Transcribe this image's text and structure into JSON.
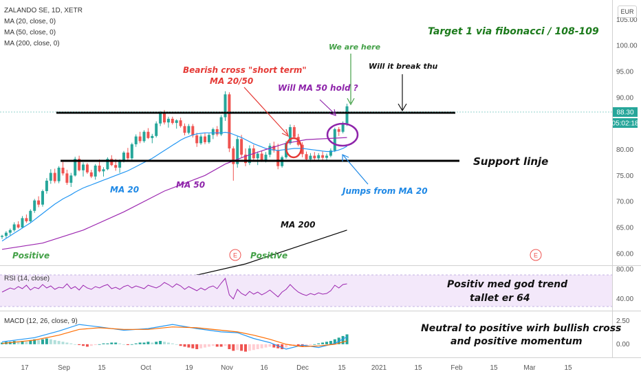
{
  "header": {
    "symbol": "ZALANDO SE, 1D, XETR",
    "indicators": [
      "MA (20, close, 0)",
      "MA (50, close, 0)",
      "MA (200, close, 0)"
    ]
  },
  "currency_button": "EUR",
  "price_axis": {
    "ticks": [
      "105.00",
      "100.00",
      "95.00",
      "90.00",
      "80.00",
      "75.00",
      "70.00",
      "65.00",
      "60.00"
    ],
    "price_badge": "88.30",
    "countdown_badge": "05:02:18"
  },
  "rsi": {
    "label": "RSI (14, close)",
    "ticks": [
      "80.00",
      "40.00"
    ]
  },
  "macd": {
    "label": "MACD (12, 26, close, 9)",
    "ticks": [
      "2.50",
      "0.00"
    ]
  },
  "time_axis": [
    "17",
    "Sep",
    "15",
    "Oct",
    "19",
    "Nov",
    "16",
    "Dec",
    "15",
    "2021",
    "15",
    "Feb",
    "15",
    "Mar",
    "15"
  ],
  "annotations": {
    "target": "Target 1 via fibonacci / 108-109",
    "we_are_here": "We are here",
    "will_break": "Will it break thu",
    "bearish_1": "Bearish cross \"short term\"",
    "bearish_2": "MA 20/50",
    "will_hold": "Will MA 50 hold ?",
    "support": "Support linje",
    "jumps": "Jumps from MA 20",
    "ma20": "MA 20",
    "ma50": "MA 50",
    "ma200": "MA 200",
    "positive_left": "Positive",
    "positive_mid": "Positive",
    "earnings_marker": "E",
    "rsi_note_1": "Positiv med god trend",
    "rsi_note_2": "tallet er 64",
    "macd_note_1": "Neutral to positive wirh bullish cross",
    "macd_note_2": "and positive momentum"
  },
  "colors": {
    "up": "#26a69a",
    "down": "#ef5350",
    "ma20": "#2196f3",
    "ma50": "#9c27b0",
    "ma200": "#000000",
    "annotation_green": "#1b7a1b",
    "annotation_red": "#e53935",
    "annotation_purple": "#8e24aa",
    "annotation_blue": "#1e88e5",
    "price_badge": "#26a69a",
    "rsi_band": "#ead8f5"
  },
  "chart_data": {
    "type": "candlestick",
    "price_ylim": [
      58,
      109
    ],
    "support_level": 78,
    "resistance_level": 88,
    "last_price": 88.3,
    "candles": [
      [
        63.2,
        63.6,
        62.8,
        63.4
      ],
      [
        63.4,
        64.3,
        63.0,
        64.0
      ],
      [
        64.0,
        64.8,
        63.5,
        64.5
      ],
      [
        64.5,
        66.0,
        64.2,
        65.6
      ],
      [
        65.6,
        66.2,
        64.8,
        65.0
      ],
      [
        65.0,
        67.2,
        64.8,
        66.8
      ],
      [
        66.8,
        67.5,
        65.9,
        66.2
      ],
      [
        66.2,
        68.5,
        66.0,
        68.2
      ],
      [
        68.2,
        70.5,
        67.8,
        70.2
      ],
      [
        70.2,
        71.0,
        68.9,
        69.4
      ],
      [
        69.4,
        72.3,
        69.0,
        72.0
      ],
      [
        72.0,
        74.5,
        71.5,
        74.0
      ],
      [
        74.0,
        76.2,
        73.4,
        75.5
      ],
      [
        75.5,
        76.3,
        73.5,
        73.9
      ],
      [
        73.9,
        76.8,
        73.5,
        76.5
      ],
      [
        76.5,
        77.6,
        75.0,
        75.4
      ],
      [
        75.4,
        76.1,
        73.2,
        73.6
      ],
      [
        73.6,
        75.5,
        72.8,
        75.0
      ],
      [
        75.0,
        78.6,
        74.8,
        78.2
      ],
      [
        78.2,
        78.8,
        75.8,
        76.0
      ],
      [
        76.0,
        77.5,
        74.8,
        77.1
      ],
      [
        77.1,
        77.4,
        75.3,
        75.6
      ],
      [
        75.6,
        76.1,
        74.5,
        74.8
      ],
      [
        74.8,
        77.2,
        74.2,
        76.9
      ],
      [
        76.9,
        78.1,
        75.6,
        75.8
      ],
      [
        75.8,
        76.6,
        74.8,
        76.2
      ],
      [
        76.2,
        78.5,
        76.0,
        78.2
      ],
      [
        78.2,
        78.9,
        76.8,
        77.0
      ],
      [
        77.0,
        78.2,
        75.9,
        76.5
      ],
      [
        76.5,
        78.1,
        75.5,
        77.8
      ],
      [
        77.8,
        79.7,
        77.5,
        79.4
      ],
      [
        79.4,
        80.3,
        78.0,
        78.3
      ],
      [
        78.3,
        81.3,
        78.0,
        81.0
      ],
      [
        81.0,
        82.9,
        80.5,
        82.5
      ],
      [
        82.5,
        83.4,
        81.2,
        81.6
      ],
      [
        81.6,
        83.7,
        81.3,
        83.4
      ],
      [
        83.4,
        84.1,
        82.0,
        82.2
      ],
      [
        82.2,
        83.0,
        81.2,
        82.6
      ],
      [
        82.6,
        85.4,
        82.3,
        85.0
      ],
      [
        85.0,
        87.4,
        84.5,
        86.9
      ],
      [
        86.9,
        87.6,
        84.8,
        85.2
      ],
      [
        85.2,
        86.3,
        84.2,
        85.9
      ],
      [
        85.9,
        86.3,
        84.8,
        85.1
      ],
      [
        85.1,
        85.8,
        84.0,
        85.6
      ],
      [
        85.6,
        86.1,
        84.2,
        84.5
      ],
      [
        84.5,
        85.0,
        82.7,
        83.2
      ],
      [
        83.2,
        84.9,
        82.9,
        84.5
      ],
      [
        84.5,
        84.9,
        82.3,
        82.7
      ],
      [
        82.7,
        83.2,
        80.5,
        81.2
      ],
      [
        81.2,
        82.9,
        80.9,
        82.5
      ],
      [
        82.5,
        83.2,
        81.0,
        81.4
      ],
      [
        81.4,
        83.1,
        81.1,
        82.8
      ],
      [
        82.8,
        84.2,
        82.0,
        83.9
      ],
      [
        83.9,
        84.5,
        82.5,
        82.9
      ],
      [
        82.9,
        86.6,
        82.6,
        86.2
      ],
      [
        86.2,
        91.2,
        85.5,
        90.6
      ],
      [
        90.6,
        91.0,
        79.5,
        80.2
      ],
      [
        80.2,
        80.6,
        74.0,
        77.2
      ],
      [
        77.2,
        82.5,
        76.5,
        82.0
      ],
      [
        82.0,
        82.8,
        78.5,
        79.0
      ],
      [
        79.0,
        80.2,
        76.8,
        77.4
      ],
      [
        77.4,
        80.8,
        77.0,
        80.2
      ],
      [
        80.2,
        80.9,
        77.8,
        78.3
      ],
      [
        78.3,
        79.6,
        77.0,
        79.2
      ],
      [
        79.2,
        79.7,
        77.6,
        77.9
      ],
      [
        77.9,
        79.5,
        77.5,
        79.0
      ],
      [
        79.0,
        81.2,
        78.5,
        80.7
      ],
      [
        80.7,
        81.5,
        79.4,
        79.8
      ],
      [
        79.8,
        81.1,
        76.2,
        76.8
      ],
      [
        76.8,
        78.8,
        76.5,
        78.5
      ],
      [
        78.5,
        81.6,
        78.2,
        81.2
      ],
      [
        81.2,
        84.8,
        80.9,
        84.3
      ],
      [
        84.3,
        84.7,
        82.0,
        82.4
      ],
      [
        82.4,
        83.0,
        80.6,
        80.9
      ],
      [
        80.9,
        81.4,
        78.5,
        79.1
      ],
      [
        79.1,
        79.6,
        77.7,
        78.1
      ],
      [
        78.1,
        79.3,
        77.6,
        78.8
      ],
      [
        78.8,
        79.5,
        77.9,
        78.3
      ],
      [
        78.3,
        79.3,
        77.8,
        78.9
      ],
      [
        78.9,
        79.6,
        78.0,
        78.4
      ],
      [
        78.4,
        79.2,
        77.9,
        78.8
      ],
      [
        78.8,
        80.2,
        78.5,
        79.8
      ],
      [
        79.8,
        84.2,
        79.5,
        83.9
      ],
      [
        83.9,
        84.3,
        82.6,
        83.4
      ],
      [
        83.4,
        85.4,
        83.1,
        85.0
      ],
      [
        85.0,
        88.8,
        84.5,
        88.3
      ]
    ],
    "ma20": [
      62.4,
      62.9,
      63.4,
      63.9,
      64.4,
      64.9,
      65.4,
      65.9,
      66.5,
      67.1,
      67.7,
      68.3,
      68.9,
      69.5,
      70.0,
      70.5,
      70.9,
      71.3,
      71.8,
      72.2,
      72.6,
      72.9,
      73.2,
      73.5,
      73.8,
      74.1,
      74.4,
      74.7,
      75.0,
      75.3,
      75.6,
      75.9,
      76.3,
      76.7,
      77.1,
      77.5,
      77.9,
      78.3,
      78.8,
      79.3,
      79.8,
      80.3,
      80.8,
      81.3,
      81.8,
      82.2,
      82.5,
      82.8,
      83.0,
      83.1,
      83.2,
      83.2,
      83.2,
      83.2,
      83.2,
      83.3,
      83.2,
      82.9,
      82.6,
      82.3,
      81.9,
      81.5,
      81.1,
      80.8,
      80.5,
      80.2,
      80.0,
      79.9,
      79.8,
      79.9,
      80.0,
      80.1,
      80.2,
      80.2,
      80.2,
      80.1,
      80.0,
      79.9,
      79.8,
      79.7,
      79.6,
      79.6,
      79.7,
      79.9,
      80.2,
      80.6
    ],
    "ma50": [
      null,
      null,
      null,
      null,
      null,
      null,
      null,
      null,
      null,
      null,
      null,
      null,
      null,
      null,
      null,
      null,
      null,
      null,
      null,
      null,
      null,
      null,
      null,
      null,
      null,
      null,
      null,
      null,
      null,
      null,
      null,
      null,
      null,
      null,
      null,
      null,
      null,
      null,
      null,
      null,
      null,
      null,
      null,
      null,
      null,
      null,
      null,
      null,
      null,
      null,
      null,
      null,
      null,
      null,
      null,
      null,
      null,
      null,
      null,
      null,
      null,
      null,
      null,
      null,
      null,
      null,
      null,
      null,
      null,
      null,
      null,
      null,
      null,
      null,
      null,
      null,
      null,
      null,
      null,
      null,
      null,
      null,
      null,
      null,
      null,
      null
    ],
    "ma50_points": [
      [
        0,
        60.8
      ],
      [
        10,
        62.0
      ],
      [
        20,
        64.5
      ],
      [
        30,
        68.0
      ],
      [
        40,
        72.0
      ],
      [
        50,
        75.0
      ],
      [
        55,
        77.2
      ],
      [
        60,
        78.7
      ],
      [
        65,
        80.0
      ],
      [
        70,
        81.2
      ],
      [
        75,
        81.9
      ],
      [
        80,
        82.1
      ],
      [
        85,
        82.3
      ]
    ],
    "ma200_points": [
      [
        32,
        53.0
      ],
      [
        60,
        58.0
      ],
      [
        85,
        64.5
      ]
    ],
    "rsi": {
      "ylim": [
        25,
        90
      ],
      "band": [
        30,
        70
      ],
      "values": [
        52,
        55,
        58,
        56,
        60,
        57,
        62,
        55,
        59,
        57,
        63,
        58,
        61,
        56,
        59,
        58,
        64,
        57,
        60,
        55,
        62,
        58,
        56,
        60,
        58,
        61,
        63,
        57,
        59,
        56,
        60,
        62,
        58,
        61,
        59,
        57,
        62,
        60,
        58,
        61,
        66,
        63,
        59,
        64,
        61,
        56,
        60,
        57,
        54,
        58,
        55,
        59,
        61,
        57,
        65,
        72,
        48,
        42,
        56,
        50,
        47,
        53,
        49,
        52,
        48,
        51,
        55,
        50,
        45,
        52,
        56,
        63,
        57,
        52,
        49,
        47,
        50,
        48,
        51,
        49,
        50,
        54,
        62,
        58,
        63,
        64
      ]
    },
    "macd": {
      "ylim": [
        -1.6,
        4.0
      ],
      "macd_points": [
        [
          0,
          0.3
        ],
        [
          8,
          0.8
        ],
        [
          14,
          1.6
        ],
        [
          19,
          2.4
        ],
        [
          24,
          2.1
        ],
        [
          30,
          1.7
        ],
        [
          36,
          1.9
        ],
        [
          42,
          2.4
        ],
        [
          48,
          1.9
        ],
        [
          54,
          1.5
        ],
        [
          58,
          1.4
        ],
        [
          62,
          0.7
        ],
        [
          66,
          0.2
        ],
        [
          70,
          -0.6
        ],
        [
          74,
          -0.1
        ],
        [
          78,
          -0.4
        ],
        [
          82,
          0.1
        ],
        [
          85,
          0.9
        ]
      ],
      "signal_points": [
        [
          0,
          0.1
        ],
        [
          8,
          0.5
        ],
        [
          14,
          1.1
        ],
        [
          19,
          1.8
        ],
        [
          24,
          2.0
        ],
        [
          30,
          1.8
        ],
        [
          36,
          1.8
        ],
        [
          42,
          2.1
        ],
        [
          48,
          2.0
        ],
        [
          54,
          1.7
        ],
        [
          58,
          1.5
        ],
        [
          62,
          1.1
        ],
        [
          66,
          0.6
        ],
        [
          70,
          0.0
        ],
        [
          74,
          -0.3
        ],
        [
          78,
          -0.2
        ],
        [
          82,
          0.0
        ],
        [
          85,
          0.4
        ]
      ],
      "hist": [
        0.2,
        0.3,
        0.3,
        0.4,
        0.3,
        0.4,
        0.3,
        0.5,
        0.6,
        0.5,
        0.6,
        0.7,
        0.6,
        0.5,
        0.4,
        0.3,
        0.2,
        0.1,
        0.0,
        -0.1,
        -0.2,
        -0.3,
        -0.2,
        -0.1,
        0.0,
        0.1,
        0.1,
        0.2,
        0.2,
        0.1,
        0.0,
        -0.1,
        0.0,
        0.1,
        0.2,
        0.2,
        0.3,
        0.2,
        0.3,
        0.4,
        0.3,
        0.2,
        0.1,
        0.0,
        -0.2,
        -0.3,
        -0.4,
        -0.5,
        -0.6,
        -0.5,
        -0.4,
        -0.3,
        -0.2,
        -0.3,
        -0.3,
        -0.2,
        -0.6,
        -0.8,
        -0.7,
        -0.8,
        -0.9,
        -0.8,
        -0.7,
        -0.6,
        -0.5,
        -0.4,
        -0.3,
        -0.4,
        -0.5,
        -0.6,
        -0.4,
        -0.2,
        -0.1,
        -0.2,
        -0.3,
        -0.2,
        -0.1,
        0.0,
        0.1,
        0.2,
        0.3,
        0.4,
        0.6,
        0.8,
        1.0,
        1.2
      ]
    }
  }
}
